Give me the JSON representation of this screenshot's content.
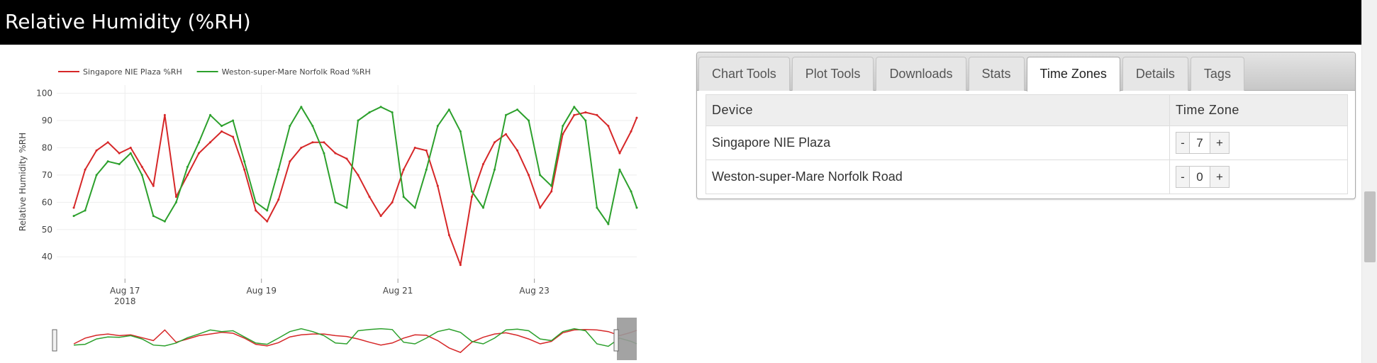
{
  "title": "Relative Humidity (%RH)",
  "tabs": [
    {
      "label": "Chart Tools",
      "active": false
    },
    {
      "label": "Plot Tools",
      "active": false
    },
    {
      "label": "Downloads",
      "active": false
    },
    {
      "label": "Stats",
      "active": false
    },
    {
      "label": "Time Zones",
      "active": true
    },
    {
      "label": "Details",
      "active": false
    },
    {
      "label": "Tags",
      "active": false
    }
  ],
  "timezone_table": {
    "headers": [
      "Device",
      "Time Zone"
    ],
    "rows": [
      {
        "device": "Singapore NIE Plaza",
        "offset": "7",
        "minus": "-",
        "plus": "+"
      },
      {
        "device": "Weston-super-Mare Norfolk Road",
        "offset": "0",
        "minus": "-",
        "plus": "+"
      }
    ]
  },
  "colors": {
    "singapore": "#d62728",
    "weston": "#2ca02c",
    "titlebar": "#000000"
  },
  "chart_data": {
    "type": "line",
    "title": "",
    "xlabel": "",
    "ylabel": "Relative Humidity %RH",
    "ylim": [
      32,
      103
    ],
    "xlim": [
      "2018-08-16 00:00",
      "2018-08-24 12:00"
    ],
    "x_ticks": [
      {
        "label": "Aug 17",
        "sublabel": "2018",
        "value": "2018-08-17"
      },
      {
        "label": "Aug 19",
        "sublabel": "",
        "value": "2018-08-19"
      },
      {
        "label": "Aug 21",
        "sublabel": "",
        "value": "2018-08-21"
      },
      {
        "label": "Aug 23",
        "sublabel": "",
        "value": "2018-08-23"
      }
    ],
    "y_ticks": [
      40,
      50,
      60,
      70,
      80,
      90,
      100
    ],
    "grid": true,
    "legend_position": "top-left",
    "series": [
      {
        "name": "Singapore NIE Plaza %RH",
        "color": "#d62728",
        "x": [
          "2018-08-16 06:00",
          "2018-08-16 10:00",
          "2018-08-16 14:00",
          "2018-08-16 18:00",
          "2018-08-16 22:00",
          "2018-08-17 02:00",
          "2018-08-17 06:00",
          "2018-08-17 10:00",
          "2018-08-17 14:00",
          "2018-08-17 18:00",
          "2018-08-17 22:00",
          "2018-08-18 02:00",
          "2018-08-18 06:00",
          "2018-08-18 10:00",
          "2018-08-18 14:00",
          "2018-08-18 18:00",
          "2018-08-18 22:00",
          "2018-08-19 02:00",
          "2018-08-19 06:00",
          "2018-08-19 10:00",
          "2018-08-19 14:00",
          "2018-08-19 18:00",
          "2018-08-19 22:00",
          "2018-08-20 02:00",
          "2018-08-20 06:00",
          "2018-08-20 10:00",
          "2018-08-20 14:00",
          "2018-08-20 18:00",
          "2018-08-20 22:00",
          "2018-08-21 02:00",
          "2018-08-21 06:00",
          "2018-08-21 10:00",
          "2018-08-21 14:00",
          "2018-08-21 18:00",
          "2018-08-21 22:00",
          "2018-08-22 02:00",
          "2018-08-22 06:00",
          "2018-08-22 10:00",
          "2018-08-22 14:00",
          "2018-08-22 18:00",
          "2018-08-22 22:00",
          "2018-08-23 02:00",
          "2018-08-23 06:00",
          "2018-08-23 10:00",
          "2018-08-23 14:00",
          "2018-08-23 18:00",
          "2018-08-23 22:00",
          "2018-08-24 02:00",
          "2018-08-24 06:00",
          "2018-08-24 10:00",
          "2018-08-24 12:00"
        ],
        "values": [
          58,
          72,
          79,
          82,
          78,
          80,
          73,
          66,
          92,
          62,
          70,
          78,
          82,
          86,
          84,
          72,
          57,
          53,
          61,
          75,
          80,
          82,
          82,
          78,
          76,
          70,
          62,
          55,
          60,
          72,
          80,
          79,
          66,
          48,
          37,
          62,
          74,
          82,
          85,
          79,
          70,
          58,
          64,
          85,
          92,
          93,
          92,
          88,
          78,
          86,
          91
        ]
      },
      {
        "name": "Weston-super-Mare Norfolk Road %RH",
        "color": "#2ca02c",
        "x": [
          "2018-08-16 06:00",
          "2018-08-16 10:00",
          "2018-08-16 14:00",
          "2018-08-16 18:00",
          "2018-08-16 22:00",
          "2018-08-17 02:00",
          "2018-08-17 06:00",
          "2018-08-17 10:00",
          "2018-08-17 14:00",
          "2018-08-17 18:00",
          "2018-08-17 22:00",
          "2018-08-18 02:00",
          "2018-08-18 06:00",
          "2018-08-18 10:00",
          "2018-08-18 14:00",
          "2018-08-18 18:00",
          "2018-08-18 22:00",
          "2018-08-19 02:00",
          "2018-08-19 06:00",
          "2018-08-19 10:00",
          "2018-08-19 14:00",
          "2018-08-19 18:00",
          "2018-08-19 22:00",
          "2018-08-20 02:00",
          "2018-08-20 06:00",
          "2018-08-20 10:00",
          "2018-08-20 14:00",
          "2018-08-20 18:00",
          "2018-08-20 22:00",
          "2018-08-21 02:00",
          "2018-08-21 06:00",
          "2018-08-21 10:00",
          "2018-08-21 14:00",
          "2018-08-21 18:00",
          "2018-08-21 22:00",
          "2018-08-22 02:00",
          "2018-08-22 06:00",
          "2018-08-22 10:00",
          "2018-08-22 14:00",
          "2018-08-22 18:00",
          "2018-08-22 22:00",
          "2018-08-23 02:00",
          "2018-08-23 06:00",
          "2018-08-23 10:00",
          "2018-08-23 14:00",
          "2018-08-23 18:00",
          "2018-08-23 22:00",
          "2018-08-24 02:00",
          "2018-08-24 06:00",
          "2018-08-24 10:00",
          "2018-08-24 12:00"
        ],
        "values": [
          55,
          57,
          70,
          75,
          74,
          78,
          70,
          55,
          53,
          60,
          73,
          82,
          92,
          88,
          90,
          75,
          60,
          57,
          72,
          88,
          95,
          88,
          78,
          60,
          58,
          90,
          93,
          95,
          93,
          62,
          58,
          72,
          88,
          94,
          86,
          64,
          58,
          72,
          92,
          94,
          90,
          70,
          66,
          88,
          95,
          90,
          58,
          52,
          72,
          64,
          58
        ]
      }
    ],
    "navigator": {
      "visible": true
    }
  }
}
